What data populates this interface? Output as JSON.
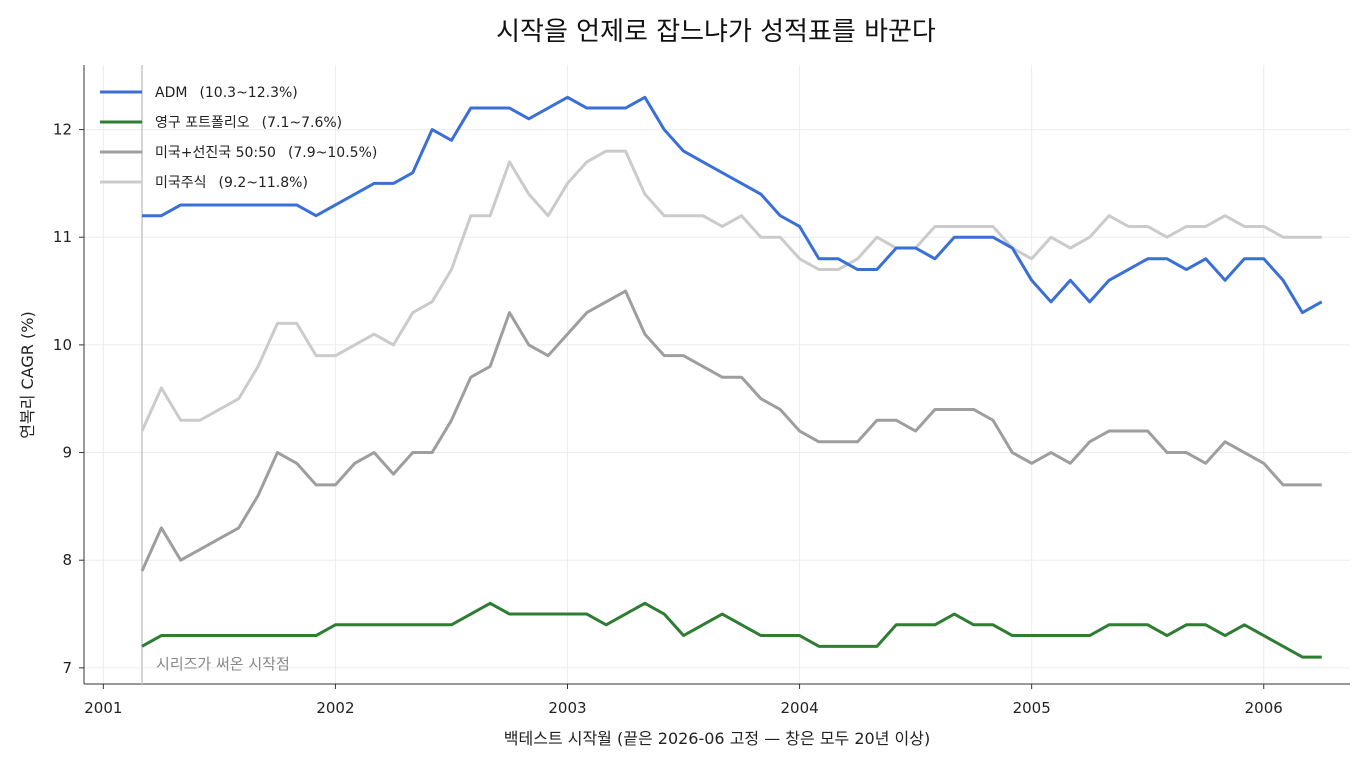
{
  "chart_data": {
    "type": "line",
    "title": "시작을 언제로 잡느냐가 성적표를 바꾼다",
    "xlabel": "백테스트 시작월 (끝은 2026-06 고정 — 창은 모두 20년 이상)",
    "ylabel": "연복리 CAGR (%)",
    "xlim": [
      "2000-12-01",
      "2006-05-15"
    ],
    "ylim": [
      6.85,
      12.6
    ],
    "x_ticks": [
      "2001",
      "2002",
      "2003",
      "2004",
      "2005",
      "2006"
    ],
    "y_ticks": [
      "7",
      "8",
      "9",
      "10",
      "11",
      "12"
    ],
    "grid": true,
    "legend_position": "top-left",
    "annotation": {
      "x": "2001-03",
      "text": "시리즈가 써온 시작점"
    },
    "x": [
      "2001-03",
      "2001-04",
      "2001-05",
      "2001-06",
      "2001-07",
      "2001-08",
      "2001-09",
      "2001-10",
      "2001-11",
      "2001-12",
      "2002-01",
      "2002-02",
      "2002-03",
      "2002-04",
      "2002-05",
      "2002-06",
      "2002-07",
      "2002-08",
      "2002-09",
      "2002-10",
      "2002-11",
      "2002-12",
      "2003-01",
      "2003-02",
      "2003-03",
      "2003-04",
      "2003-05",
      "2003-06",
      "2003-07",
      "2003-08",
      "2003-09",
      "2003-10",
      "2003-11",
      "2003-12",
      "2004-01",
      "2004-02",
      "2004-03",
      "2004-04",
      "2004-05",
      "2004-06",
      "2004-07",
      "2004-08",
      "2004-09",
      "2004-10",
      "2004-11",
      "2004-12",
      "2005-01",
      "2005-02",
      "2005-03",
      "2005-04",
      "2005-05",
      "2005-06",
      "2005-07",
      "2005-08",
      "2005-09",
      "2005-10",
      "2005-11",
      "2005-12",
      "2006-01",
      "2006-02",
      "2006-03",
      "2006-04"
    ],
    "series": [
      {
        "name": "ADM",
        "range_label": "(10.3~12.3%)",
        "color": "#3a6fd8",
        "values": [
          11.2,
          11.2,
          11.3,
          11.3,
          11.3,
          11.3,
          11.3,
          11.3,
          11.3,
          11.2,
          11.3,
          11.4,
          11.5,
          11.5,
          11.6,
          12.0,
          11.9,
          12.2,
          12.2,
          12.2,
          12.1,
          12.2,
          12.3,
          12.2,
          12.2,
          12.2,
          12.3,
          12.0,
          11.8,
          11.7,
          11.6,
          11.5,
          11.4,
          11.2,
          11.1,
          10.8,
          10.8,
          10.7,
          10.7,
          10.9,
          10.9,
          10.8,
          11.0,
          11.0,
          11.0,
          10.9,
          10.6,
          10.4,
          10.6,
          10.4,
          10.6,
          10.7,
          10.8,
          10.8,
          10.7,
          10.8,
          10.6,
          10.8,
          10.8,
          10.6,
          10.3,
          10.4
        ]
      },
      {
        "name": "영구 포트폴리오",
        "range_label": "(7.1~7.6%)",
        "color": "#2e7d32",
        "values": [
          7.2,
          7.3,
          7.3,
          7.3,
          7.3,
          7.3,
          7.3,
          7.3,
          7.3,
          7.3,
          7.4,
          7.4,
          7.4,
          7.4,
          7.4,
          7.4,
          7.4,
          7.5,
          7.6,
          7.5,
          7.5,
          7.5,
          7.5,
          7.5,
          7.4,
          7.5,
          7.6,
          7.5,
          7.3,
          7.4,
          7.5,
          7.4,
          7.3,
          7.3,
          7.3,
          7.2,
          7.2,
          7.2,
          7.2,
          7.4,
          7.4,
          7.4,
          7.5,
          7.4,
          7.4,
          7.3,
          7.3,
          7.3,
          7.3,
          7.3,
          7.4,
          7.4,
          7.4,
          7.3,
          7.4,
          7.4,
          7.3,
          7.4,
          7.3,
          7.2,
          7.1,
          7.1
        ]
      },
      {
        "name": "미국+선진국 50:50",
        "range_label": "(7.9~10.5%)",
        "color": "#9e9e9e",
        "values": [
          7.9,
          8.3,
          8.0,
          8.1,
          8.2,
          8.3,
          8.6,
          9.0,
          8.9,
          8.7,
          8.7,
          8.9,
          9.0,
          8.8,
          9.0,
          9.0,
          9.3,
          9.7,
          9.8,
          10.3,
          10.0,
          9.9,
          10.1,
          10.3,
          10.4,
          10.5,
          10.1,
          9.9,
          9.9,
          9.8,
          9.7,
          9.7,
          9.5,
          9.4,
          9.2,
          9.1,
          9.1,
          9.1,
          9.3,
          9.3,
          9.2,
          9.4,
          9.4,
          9.4,
          9.3,
          9.0,
          8.9,
          9.0,
          8.9,
          9.1,
          9.2,
          9.2,
          9.2,
          9.0,
          9.0,
          8.9,
          9.1,
          9.0,
          8.9,
          8.7,
          8.7,
          8.7
        ]
      },
      {
        "name": "미국주식",
        "range_label": "(9.2~11.8%)",
        "color": "#cbcbcb",
        "values": [
          9.2,
          9.6,
          9.3,
          9.3,
          9.4,
          9.5,
          9.8,
          10.2,
          10.2,
          9.9,
          9.9,
          10.0,
          10.1,
          10.0,
          10.3,
          10.4,
          10.7,
          11.2,
          11.2,
          11.7,
          11.4,
          11.2,
          11.5,
          11.7,
          11.8,
          11.8,
          11.4,
          11.2,
          11.2,
          11.2,
          11.1,
          11.2,
          11.0,
          11.0,
          10.8,
          10.7,
          10.7,
          10.8,
          11.0,
          10.9,
          10.9,
          11.1,
          11.1,
          11.1,
          11.1,
          10.9,
          10.8,
          11.0,
          10.9,
          11.0,
          11.2,
          11.1,
          11.1,
          11.0,
          11.1,
          11.1,
          11.2,
          11.1,
          11.1,
          11.0,
          11.0,
          11.0
        ]
      }
    ]
  }
}
